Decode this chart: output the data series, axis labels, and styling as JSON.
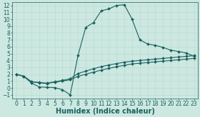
{
  "title": "",
  "xlabel": "Humidex (Indice chaleur)",
  "ylabel": "",
  "bg_color": "#cce8e0",
  "grid_color": "#b8d8d0",
  "line_color": "#1a6060",
  "xlim": [
    -0.5,
    23.5
  ],
  "ylim": [
    -1.5,
    12.5
  ],
  "xticks": [
    0,
    1,
    2,
    3,
    4,
    5,
    6,
    7,
    8,
    9,
    10,
    11,
    12,
    13,
    14,
    15,
    16,
    17,
    18,
    19,
    20,
    21,
    22,
    23
  ],
  "yticks": [
    -1,
    0,
    1,
    2,
    3,
    4,
    5,
    6,
    7,
    8,
    9,
    10,
    11,
    12
  ],
  "line1_x": [
    0,
    1,
    2,
    3,
    4,
    5,
    6,
    7,
    8,
    9,
    10,
    11,
    12,
    13,
    14,
    15,
    16,
    17,
    18,
    19,
    20,
    21,
    22,
    23
  ],
  "line1_y": [
    2.0,
    1.7,
    0.7,
    0.15,
    0.1,
    0.05,
    -0.25,
    -1.0,
    4.7,
    8.8,
    9.5,
    11.2,
    11.5,
    12.0,
    12.1,
    10.0,
    7.0,
    6.4,
    6.2,
    5.9,
    5.5,
    5.3,
    5.1,
    4.6
  ],
  "line2_x": [
    0,
    1,
    2,
    3,
    4,
    5,
    6,
    7,
    8,
    9,
    10,
    11,
    12,
    13,
    14,
    15,
    16,
    17,
    18,
    19,
    20,
    21,
    22,
    23
  ],
  "line2_y": [
    2.0,
    1.7,
    0.9,
    0.8,
    0.7,
    0.9,
    1.1,
    1.35,
    2.1,
    2.45,
    2.8,
    3.1,
    3.35,
    3.55,
    3.75,
    3.9,
    4.0,
    4.1,
    4.2,
    4.3,
    4.4,
    4.5,
    4.6,
    4.7
  ],
  "line3_x": [
    0,
    1,
    2,
    3,
    4,
    5,
    6,
    7,
    8,
    9,
    10,
    11,
    12,
    13,
    14,
    15,
    16,
    17,
    18,
    19,
    20,
    21,
    22,
    23
  ],
  "line3_y": [
    2.0,
    1.7,
    0.9,
    0.75,
    0.65,
    0.85,
    1.0,
    1.2,
    1.7,
    2.0,
    2.3,
    2.6,
    2.85,
    3.1,
    3.3,
    3.5,
    3.6,
    3.7,
    3.8,
    3.9,
    4.0,
    4.1,
    4.2,
    4.3
  ],
  "marker": "D",
  "markersize": 2.0,
  "linewidth": 0.8,
  "xlabel_fontsize": 7,
  "tick_fontsize": 5.5
}
